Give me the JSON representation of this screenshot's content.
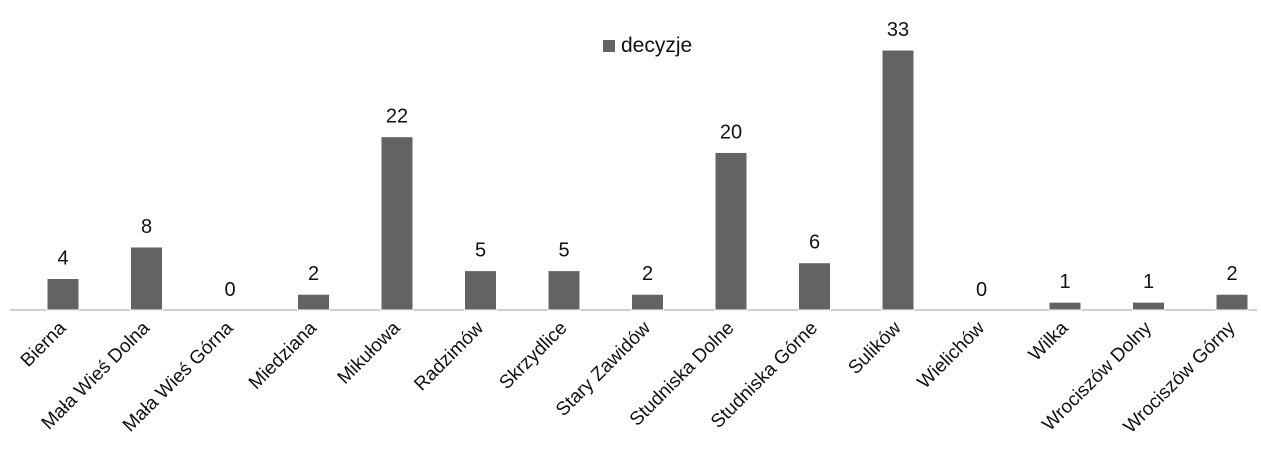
{
  "chart_data": {
    "type": "bar",
    "title": "",
    "xlabel": "",
    "ylabel": "",
    "ylim": [
      0,
      33
    ],
    "grid": false,
    "legend_position": "top",
    "bar_color": "#636363",
    "categories": [
      "Bierna",
      "Mała Wieś Dolna",
      "Mała Wieś Górna",
      "Miedziana",
      "Mikułowa",
      "Radzimów",
      "Skrzydlice",
      "Stary Zawidów",
      "Studniska Dolne",
      "Studniska Górne",
      "Sulików",
      "Wielichów",
      "Wilka",
      "Wrociszów Dolny",
      "Wrociszów Górny"
    ],
    "series": [
      {
        "name": "decyzje",
        "values": [
          4,
          8,
          0,
          2,
          22,
          5,
          5,
          2,
          20,
          6,
          33,
          0,
          1,
          1,
          2
        ]
      }
    ]
  }
}
